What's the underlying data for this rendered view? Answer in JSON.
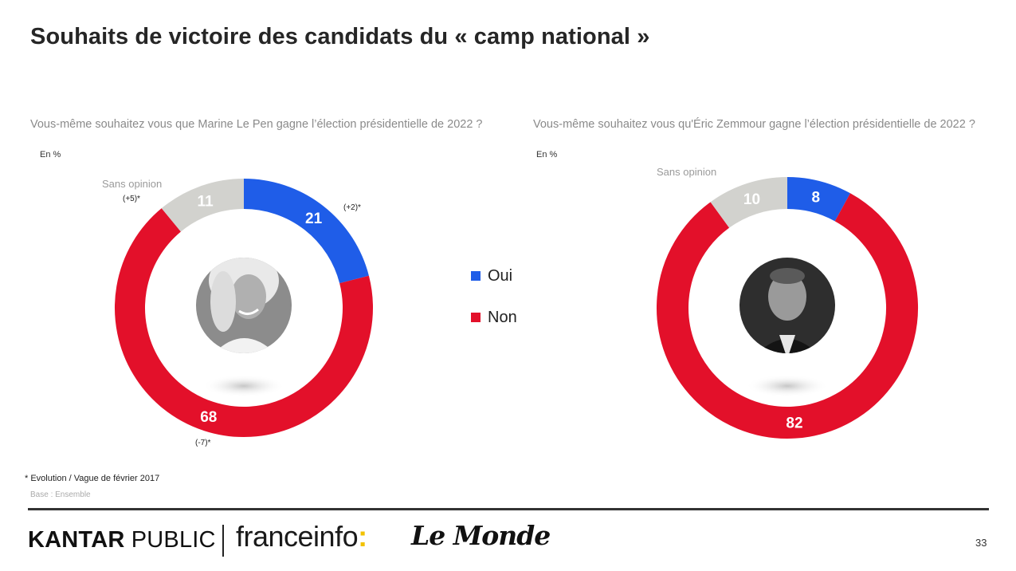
{
  "title": "Souhaits de victoire des candidats du « camp national »",
  "colors": {
    "oui": "#1f5de8",
    "non": "#e3102a",
    "sans_opinion": "#d2d2ce"
  },
  "legend": [
    {
      "key": "oui",
      "label": "Oui"
    },
    {
      "key": "non",
      "label": "Non"
    }
  ],
  "chart_data": [
    {
      "type": "donut",
      "question": "Vous-même souhaitez vous que Marine Le Pen gagne l’élection présidentielle de 2022 ?",
      "unit": "En  %",
      "slices": [
        {
          "key": "oui",
          "value": 21,
          "evolution": "(+2)*"
        },
        {
          "key": "non",
          "value": 68,
          "evolution": "(-7)*"
        },
        {
          "key": "sans_opinion",
          "value": 11,
          "evolution": "(+5)*"
        }
      ],
      "sans_opinion_label": "Sans opinion",
      "center_image": "portrait-marine-le-pen"
    },
    {
      "type": "donut",
      "question": "Vous-même souhaitez vous qu'Éric Zemmour gagne l’élection présidentielle de 2022 ?",
      "unit": "En  %",
      "slices": [
        {
          "key": "oui",
          "value": 8
        },
        {
          "key": "non",
          "value": 82
        },
        {
          "key": "sans_opinion",
          "value": 10
        }
      ],
      "sans_opinion_label": "Sans opinion",
      "center_image": "portrait-eric-zemmour"
    }
  ],
  "footnote": "* Evolution  / Vague de février 2017",
  "base": "Base : Ensemble",
  "brands": {
    "kantar_bold": "KANTAR",
    "kantar_rest": " PUBLIC",
    "franceinfo": "franceinfo",
    "franceinfo_colon": ":",
    "lemonde": "Le Monde"
  },
  "page_number": "33"
}
